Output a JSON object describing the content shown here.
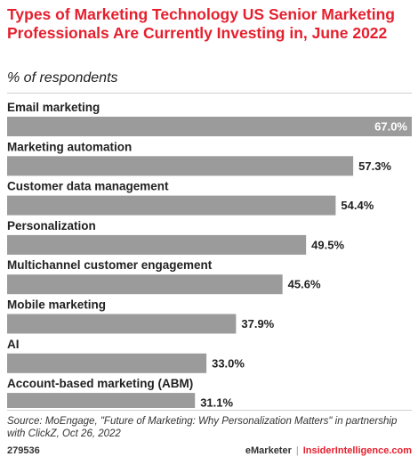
{
  "header": {
    "title": "Types of Marketing Technology US Senior Marketing Professionals Are Currently Investing in, June 2022",
    "subtitle": "% of respondents"
  },
  "chart_data": {
    "type": "bar",
    "orientation": "horizontal",
    "categories": [
      "Email marketing",
      "Marketing automation",
      "Customer data management",
      "Personalization",
      "Multichannel customer engagement",
      "Mobile marketing",
      "AI",
      "Account-based marketing (ABM)"
    ],
    "values": [
      67.0,
      57.3,
      54.4,
      49.5,
      45.6,
      37.9,
      33.0,
      31.1
    ],
    "value_labels": [
      "67.0%",
      "57.3%",
      "54.4%",
      "49.5%",
      "45.6%",
      "37.9%",
      "33.0%",
      "31.1%"
    ],
    "title": "Types of Marketing Technology US Senior Marketing Professionals Are Currently Investing in, June 2022",
    "xlabel": "",
    "ylabel": "% of respondents",
    "xlim": [
      0,
      67.0
    ],
    "grid": false,
    "bar_color": "#9b9b9b"
  },
  "footer": {
    "source": "Source: MoEngage, \"Future of Marketing: Why Personalization Matters\" in partnership with ClickZ, Oct 26, 2022",
    "chart_id": "279536",
    "brand_left": "eMarketer",
    "separator": "|",
    "brand_right": "InsiderIntelligence.com"
  },
  "colors": {
    "title": "#e5202e",
    "bar": "#9b9b9b",
    "text": "#222222"
  }
}
